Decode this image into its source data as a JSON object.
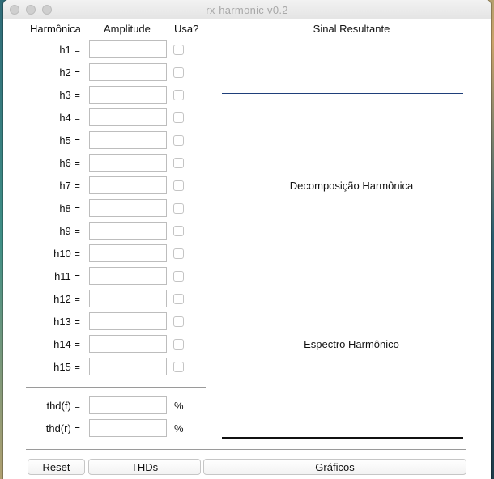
{
  "window": {
    "title": "rx-harmonic  v0.2"
  },
  "table": {
    "headers": {
      "harmonic": "Harmônica",
      "amplitude": "Amplitude",
      "use": "Usa?"
    },
    "rows": [
      {
        "label": "h1 =",
        "amplitude": "",
        "checked": false
      },
      {
        "label": "h2 =",
        "amplitude": "",
        "checked": false
      },
      {
        "label": "h3 =",
        "amplitude": "",
        "checked": false
      },
      {
        "label": "h4 =",
        "amplitude": "",
        "checked": false
      },
      {
        "label": "h5 =",
        "amplitude": "",
        "checked": false
      },
      {
        "label": "h6 =",
        "amplitude": "",
        "checked": false
      },
      {
        "label": "h7 =",
        "amplitude": "",
        "checked": false
      },
      {
        "label": "h8 =",
        "amplitude": "",
        "checked": false
      },
      {
        "label": "h9 =",
        "amplitude": "",
        "checked": false
      },
      {
        "label": "h10 =",
        "amplitude": "",
        "checked": false
      },
      {
        "label": "h11 =",
        "amplitude": "",
        "checked": false
      },
      {
        "label": "h12 =",
        "amplitude": "",
        "checked": false
      },
      {
        "label": "h13 =",
        "amplitude": "",
        "checked": false
      },
      {
        "label": "h14 =",
        "amplitude": "",
        "checked": false
      },
      {
        "label": "h15 =",
        "amplitude": "",
        "checked": false
      }
    ]
  },
  "thd": {
    "f": {
      "label": "thd(f) =",
      "value": "",
      "unit": "%"
    },
    "r": {
      "label": "thd(r) =",
      "value": "",
      "unit": "%"
    }
  },
  "charts": {
    "resultant": "Sinal Resultante",
    "decomposition": "Decomposição Harmônica",
    "spectrum": "Espectro Harmônico"
  },
  "buttons": {
    "reset": "Reset",
    "thds": "THDs",
    "graphs": "Gráficos"
  },
  "colors": {
    "plot_line": "#1f3f7a",
    "window_bg": "#ececec"
  }
}
